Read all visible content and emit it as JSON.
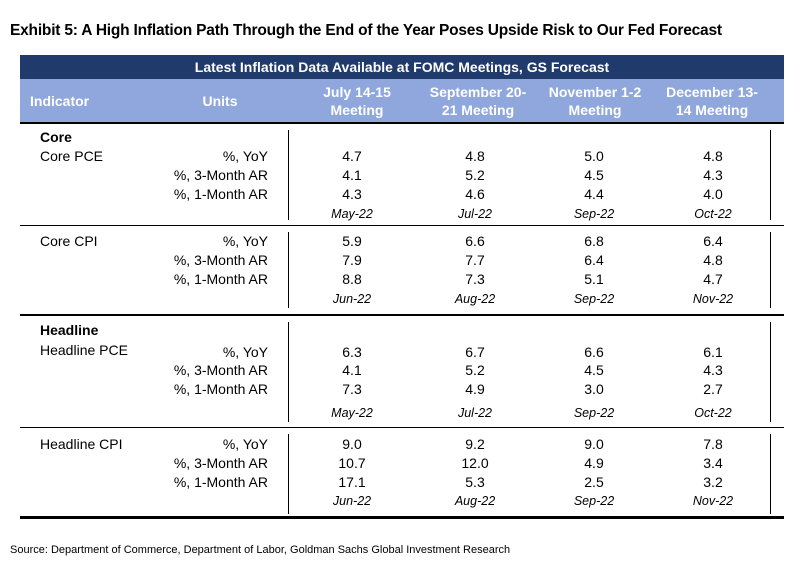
{
  "title": "Exhibit 5: A High Inflation Path Through the End of the Year Poses Upside Risk to Our Fed Forecast",
  "banner": "Latest Inflation Data Available at FOMC Meetings, GS Forecast",
  "headers": {
    "indicator": "Indicator",
    "units": "Units",
    "m1_line1": "July 14-15",
    "m1_line2": "Meeting",
    "m2_line1": "September 20-",
    "m2_line2": "21 Meeting",
    "m3_line1": "November 1-2",
    "m3_line2": "Meeting",
    "m4_line1": "December 13-",
    "m4_line2": "14 Meeting"
  },
  "sections": {
    "core": "Core",
    "headline": "Headline"
  },
  "rows": {
    "core_pce": {
      "name": "Core PCE",
      "units": [
        "%, YoY",
        "%, 3-Month AR",
        "%, 1-Month AR"
      ],
      "m1": [
        "4.7",
        "4.1",
        "4.3"
      ],
      "m2": [
        "4.8",
        "5.2",
        "4.6"
      ],
      "m3": [
        "5.0",
        "4.5",
        "4.4"
      ],
      "m4": [
        "4.8",
        "4.3",
        "4.0"
      ],
      "dates": [
        "May-22",
        "Jul-22",
        "Sep-22",
        "Oct-22"
      ]
    },
    "core_cpi": {
      "name": "Core CPI",
      "units": [
        "%, YoY",
        "%, 3-Month AR",
        "%, 1-Month AR"
      ],
      "m1": [
        "5.9",
        "7.9",
        "8.8"
      ],
      "m2": [
        "6.6",
        "7.7",
        "7.3"
      ],
      "m3": [
        "6.8",
        "6.4",
        "5.1"
      ],
      "m4": [
        "6.4",
        "4.8",
        "4.7"
      ],
      "dates": [
        "Jun-22",
        "Aug-22",
        "Sep-22",
        "Nov-22"
      ]
    },
    "headline_pce": {
      "name": "Headline PCE",
      "units": [
        "%, YoY",
        "%, 3-Month AR",
        "%, 1-Month AR"
      ],
      "m1": [
        "6.3",
        "4.1",
        "7.3"
      ],
      "m2": [
        "6.7",
        "5.2",
        "4.9"
      ],
      "m3": [
        "6.6",
        "4.5",
        "3.0"
      ],
      "m4": [
        "6.1",
        "4.3",
        "2.7"
      ],
      "dates": [
        "May-22",
        "Jul-22",
        "Sep-22",
        "Oct-22"
      ]
    },
    "headline_cpi": {
      "name": "Headline CPI",
      "units": [
        "%, YoY",
        "%, 3-Month AR",
        "%, 1-Month AR"
      ],
      "m1": [
        "9.0",
        "10.7",
        "17.1"
      ],
      "m2": [
        "9.2",
        "12.0",
        "5.3"
      ],
      "m3": [
        "9.0",
        "4.9",
        "2.5"
      ],
      "m4": [
        "7.8",
        "3.4",
        "3.2"
      ],
      "dates": [
        "Jun-22",
        "Aug-22",
        "Sep-22",
        "Nov-22"
      ]
    }
  },
  "source": "Source: Department of Commerce, Department of Labor, Goldman Sachs Global Investment Research",
  "colors": {
    "banner_bg": "#1f3a6b",
    "header_bg": "#8fa7dc"
  }
}
